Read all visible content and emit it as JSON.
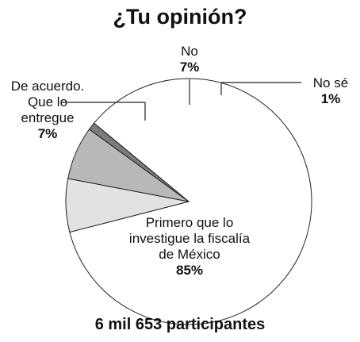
{
  "title": "¿Tu opinión?",
  "footer": "6 mil 653 participantes",
  "colors": {
    "primero": "#ffffff",
    "de_acuerdo": "#e2e2e2",
    "no": "#b8b8b8",
    "no_se": "#7b7b7b",
    "stroke": "#222222"
  },
  "chart_data": {
    "type": "pie",
    "title": "¿Tu opinión?",
    "slices": [
      {
        "label": "Primero que lo investigue la fiscalía de México",
        "value": 85,
        "value_label": "85%"
      },
      {
        "label": "De acuerdo. Que lo entregue",
        "value": 7,
        "value_label": "7%"
      },
      {
        "label": "No",
        "value": 7,
        "value_label": "7%"
      },
      {
        "label": "No sé",
        "value": 1,
        "value_label": "1%"
      }
    ]
  }
}
